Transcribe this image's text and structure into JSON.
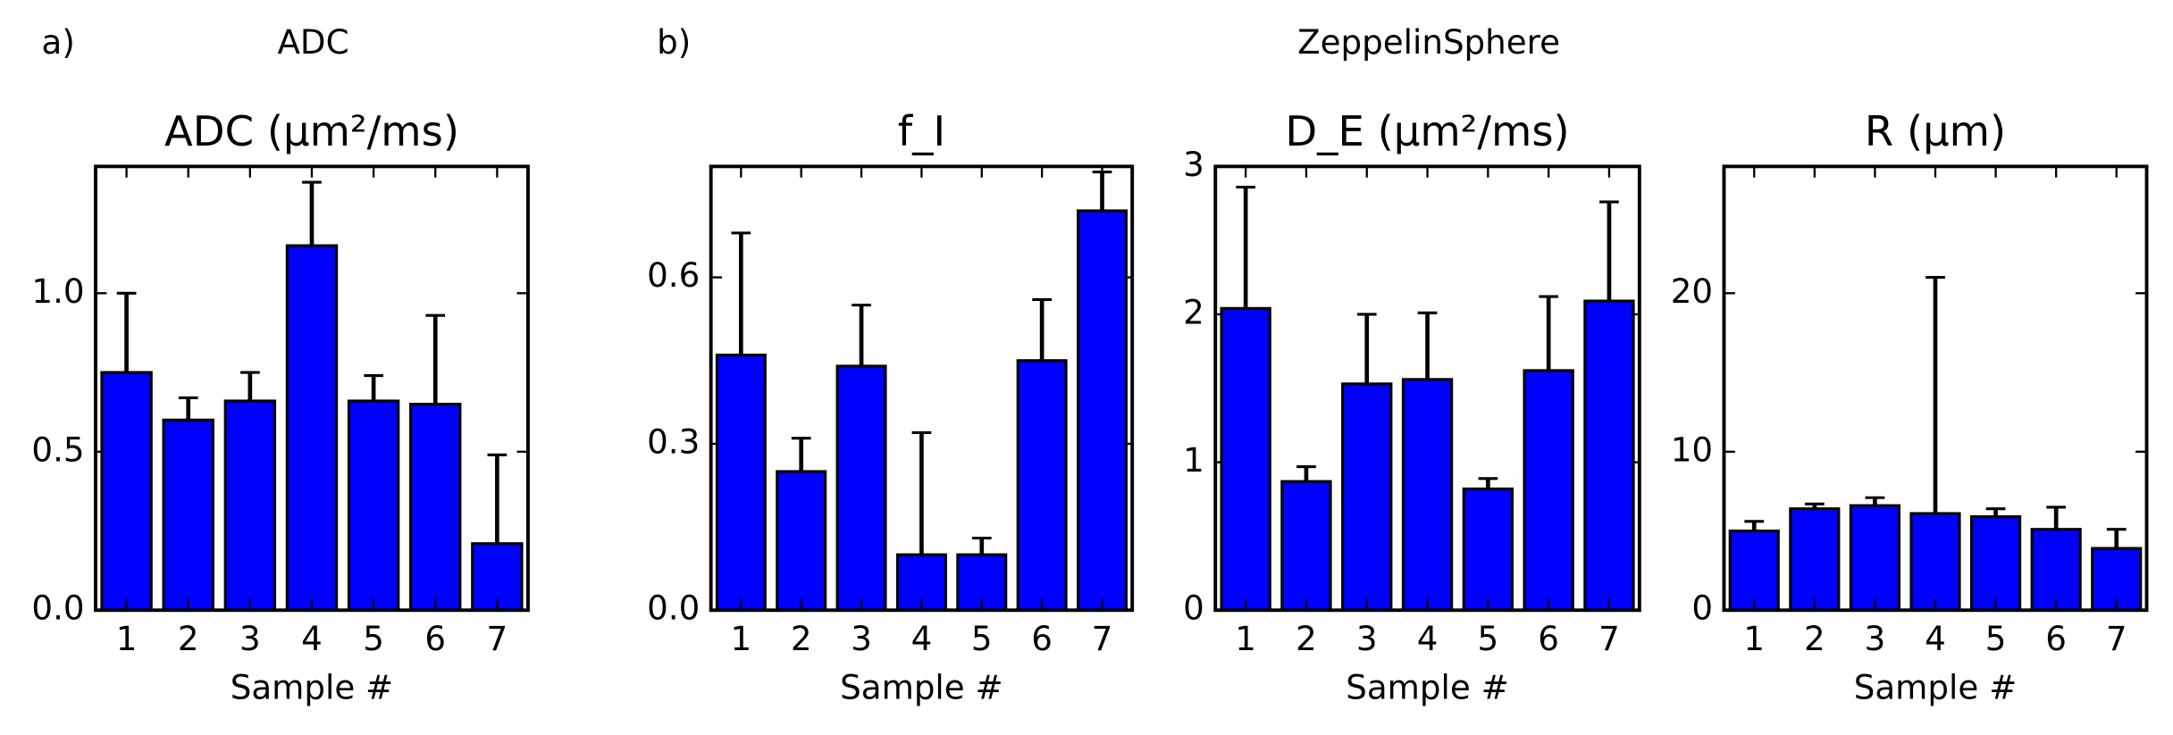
{
  "figure": {
    "panel_a_label": "a)",
    "panel_a_title": "ADC",
    "panel_b_label": "b)",
    "panel_b_title": "ZeppelinSphere"
  },
  "chart_data": [
    {
      "type": "bar",
      "title": "ADC (μm²/ms)",
      "x_label": "Sample #",
      "categories": [
        "1",
        "2",
        "3",
        "4",
        "5",
        "6",
        "7"
      ],
      "values": [
        0.75,
        0.6,
        0.66,
        1.15,
        0.66,
        0.65,
        0.21
      ],
      "errors": [
        0.25,
        0.07,
        0.09,
        0.2,
        0.08,
        0.28,
        0.28
      ],
      "color": "#0000ff",
      "ylim": [
        0,
        1.4
      ],
      "yticks": [
        {
          "value": 0,
          "label": "0.0"
        },
        0.5,
        {
          "value": 1,
          "label": "1.0"
        }
      ]
    },
    {
      "type": "bar",
      "title": "f_I",
      "x_label": "Sample #",
      "categories": [
        "1",
        "2",
        "3",
        "4",
        "5",
        "6",
        "7"
      ],
      "values": [
        0.46,
        0.25,
        0.44,
        0.1,
        0.1,
        0.45,
        0.72
      ],
      "errors": [
        0.22,
        0.06,
        0.11,
        0.22,
        0.03,
        0.11,
        0.07
      ],
      "color": "#0000ff",
      "ylim": [
        0,
        0.8
      ],
      "yticks": [
        {
          "value": 0,
          "label": "0.0"
        },
        0.3,
        0.6
      ]
    },
    {
      "type": "bar",
      "title": "D_E (μm²/ms)",
      "x_label": "Sample #",
      "categories": [
        "1",
        "2",
        "3",
        "4",
        "5",
        "6",
        "7"
      ],
      "values": [
        2.04,
        0.87,
        1.53,
        1.56,
        0.82,
        1.62,
        2.09
      ],
      "errors": [
        0.82,
        0.1,
        0.47,
        0.45,
        0.07,
        0.5,
        0.67
      ],
      "color": "#0000ff",
      "ylim": [
        0,
        3
      ],
      "yticks": [
        0,
        1,
        2,
        3
      ]
    },
    {
      "type": "bar",
      "title": "R (μm)",
      "x_label": "Sample #",
      "categories": [
        "1",
        "2",
        "3",
        "4",
        "5",
        "6",
        "7"
      ],
      "values": [
        5.0,
        6.4,
        6.6,
        6.1,
        5.9,
        5.1,
        3.9
      ],
      "errors": [
        0.6,
        0.3,
        0.5,
        14.9,
        0.5,
        1.4,
        1.2
      ],
      "color": "#0000ff",
      "ylim": [
        0,
        28
      ],
      "yticks": [
        0,
        10,
        20
      ]
    }
  ]
}
